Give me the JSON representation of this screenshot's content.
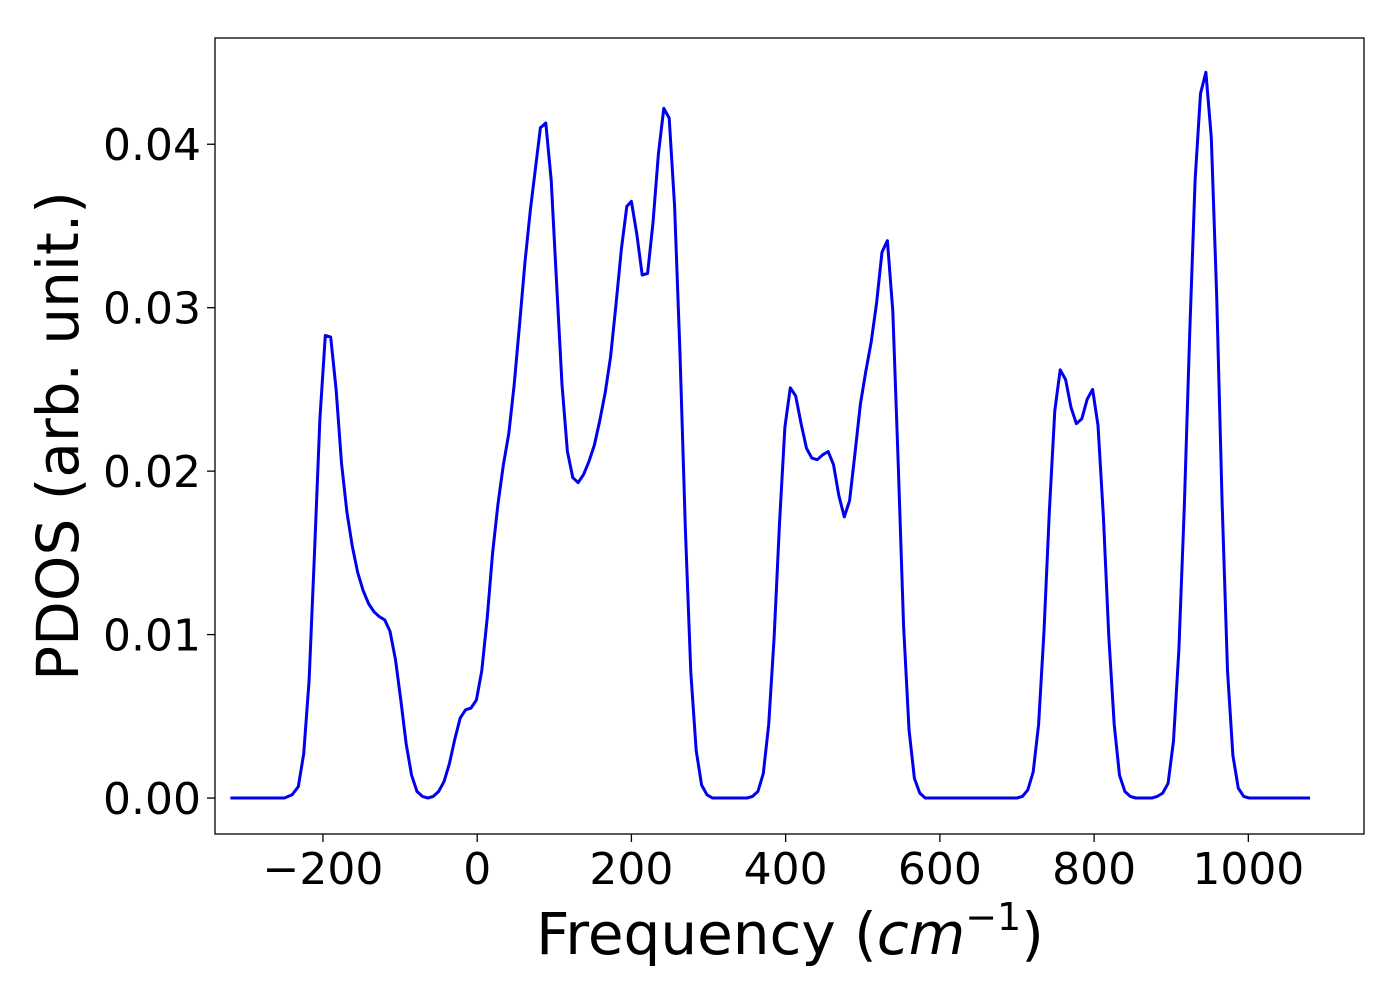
{
  "chart_data": {
    "type": "line",
    "title": "",
    "xlabel_prefix": "Frequency (",
    "xlabel_var": "cm",
    "xlabel_sup": "−1",
    "xlabel_suffix": ")",
    "ylabel": "PDOS (arb. unit.)",
    "xlim": [
      -340,
      1150
    ],
    "ylim": [
      -0.0022,
      0.0465
    ],
    "grid": false,
    "legend": "none",
    "x_ticks": [
      {
        "value": -200,
        "label": "−200"
      },
      {
        "value": 0,
        "label": "0"
      },
      {
        "value": 200,
        "label": "200"
      },
      {
        "value": 400,
        "label": "400"
      },
      {
        "value": 600,
        "label": "600"
      },
      {
        "value": 800,
        "label": "800"
      },
      {
        "value": 1000,
        "label": "1000"
      }
    ],
    "y_ticks": [
      {
        "value": 0.0,
        "label": "0.00"
      },
      {
        "value": 0.01,
        "label": "0.01"
      },
      {
        "value": 0.02,
        "label": "0.02"
      },
      {
        "value": 0.03,
        "label": "0.03"
      },
      {
        "value": 0.04,
        "label": "0.04"
      }
    ],
    "series": [
      {
        "color": "#0000ee",
        "points": [
          [
            -320,
            0.0
          ],
          [
            -250,
            0.0
          ],
          [
            -240,
            0.0002
          ],
          [
            -232,
            0.0007
          ],
          [
            -225,
            0.0027
          ],
          [
            -218,
            0.0072
          ],
          [
            -211,
            0.015
          ],
          [
            -204,
            0.0232
          ],
          [
            -197,
            0.0283
          ],
          [
            -190,
            0.0282
          ],
          [
            -183,
            0.025
          ],
          [
            -176,
            0.0205
          ],
          [
            -169,
            0.0175
          ],
          [
            -162,
            0.0154
          ],
          [
            -155,
            0.0138
          ],
          [
            -148,
            0.0127
          ],
          [
            -141,
            0.0119
          ],
          [
            -134,
            0.0114
          ],
          [
            -127,
            0.0111
          ],
          [
            -120,
            0.0109
          ],
          [
            -113,
            0.0102
          ],
          [
            -106,
            0.0085
          ],
          [
            -99,
            0.006
          ],
          [
            -92,
            0.0033
          ],
          [
            -85,
            0.0014
          ],
          [
            -78,
            0.0004
          ],
          [
            -71,
            0.0001
          ],
          [
            -64,
            0.0
          ],
          [
            -57,
            0.0001
          ],
          [
            -50,
            0.0004
          ],
          [
            -43,
            0.001
          ],
          [
            -36,
            0.0021
          ],
          [
            -29,
            0.0036
          ],
          [
            -22,
            0.0049
          ],
          [
            -15,
            0.0054
          ],
          [
            -8,
            0.0055
          ],
          [
            -1,
            0.006
          ],
          [
            6,
            0.0078
          ],
          [
            13,
            0.011
          ],
          [
            20,
            0.015
          ],
          [
            27,
            0.018
          ],
          [
            34,
            0.0204
          ],
          [
            41,
            0.0223
          ],
          [
            48,
            0.0253
          ],
          [
            55,
            0.029
          ],
          [
            62,
            0.0328
          ],
          [
            69,
            0.036
          ],
          [
            76,
            0.0387
          ],
          [
            82,
            0.041
          ],
          [
            89,
            0.0413
          ],
          [
            96,
            0.0378
          ],
          [
            103,
            0.0315
          ],
          [
            110,
            0.0253
          ],
          [
            117,
            0.0212
          ],
          [
            124,
            0.0196
          ],
          [
            131,
            0.0193
          ],
          [
            138,
            0.0198
          ],
          [
            145,
            0.0206
          ],
          [
            152,
            0.0216
          ],
          [
            159,
            0.0231
          ],
          [
            166,
            0.0248
          ],
          [
            173,
            0.027
          ],
          [
            180,
            0.0302
          ],
          [
            187,
            0.0336
          ],
          [
            194,
            0.0362
          ],
          [
            200,
            0.0365
          ],
          [
            207,
            0.0345
          ],
          [
            214,
            0.032
          ],
          [
            221,
            0.0321
          ],
          [
            228,
            0.0352
          ],
          [
            235,
            0.0394
          ],
          [
            242,
            0.0422
          ],
          [
            249,
            0.0416
          ],
          [
            256,
            0.0362
          ],
          [
            263,
            0.0272
          ],
          [
            270,
            0.0164
          ],
          [
            277,
            0.0077
          ],
          [
            284,
            0.0029
          ],
          [
            291,
            0.0008
          ],
          [
            298,
            0.0002
          ],
          [
            305,
            0.0
          ],
          [
            350,
            0.0
          ],
          [
            357,
            0.0001
          ],
          [
            364,
            0.0004
          ],
          [
            371,
            0.0015
          ],
          [
            378,
            0.0045
          ],
          [
            385,
            0.0098
          ],
          [
            392,
            0.0168
          ],
          [
            399,
            0.0227
          ],
          [
            406,
            0.0251
          ],
          [
            413,
            0.0246
          ],
          [
            420,
            0.0229
          ],
          [
            427,
            0.0214
          ],
          [
            434,
            0.0208
          ],
          [
            441,
            0.0207
          ],
          [
            448,
            0.021
          ],
          [
            455,
            0.0212
          ],
          [
            462,
            0.0204
          ],
          [
            469,
            0.0185
          ],
          [
            476,
            0.0172
          ],
          [
            483,
            0.0182
          ],
          [
            490,
            0.0211
          ],
          [
            497,
            0.0241
          ],
          [
            504,
            0.0261
          ],
          [
            511,
            0.0279
          ],
          [
            518,
            0.0303
          ],
          [
            525,
            0.0334
          ],
          [
            532,
            0.0341
          ],
          [
            539,
            0.0298
          ],
          [
            546,
            0.0205
          ],
          [
            553,
            0.0105
          ],
          [
            560,
            0.0042
          ],
          [
            567,
            0.0012
          ],
          [
            574,
            0.0003
          ],
          [
            581,
            0.0
          ],
          [
            700,
            0.0
          ],
          [
            707,
            0.0001
          ],
          [
            714,
            0.0005
          ],
          [
            721,
            0.0016
          ],
          [
            728,
            0.0045
          ],
          [
            735,
            0.0102
          ],
          [
            742,
            0.0176
          ],
          [
            749,
            0.0237
          ],
          [
            756,
            0.0262
          ],
          [
            763,
            0.0256
          ],
          [
            770,
            0.0239
          ],
          [
            777,
            0.0229
          ],
          [
            784,
            0.0232
          ],
          [
            791,
            0.0244
          ],
          [
            798,
            0.025
          ],
          [
            805,
            0.0228
          ],
          [
            812,
            0.0172
          ],
          [
            819,
            0.0099
          ],
          [
            826,
            0.0045
          ],
          [
            833,
            0.0014
          ],
          [
            840,
            0.0004
          ],
          [
            847,
            0.0001
          ],
          [
            854,
            0.0
          ],
          [
            875,
            0.0
          ],
          [
            882,
            0.0001
          ],
          [
            889,
            0.0003
          ],
          [
            896,
            0.0009
          ],
          [
            903,
            0.0035
          ],
          [
            910,
            0.0091
          ],
          [
            917,
            0.0178
          ],
          [
            924,
            0.0284
          ],
          [
            931,
            0.0378
          ],
          [
            938,
            0.0431
          ],
          [
            945,
            0.0444
          ],
          [
            952,
            0.0404
          ],
          [
            959,
            0.0307
          ],
          [
            966,
            0.0181
          ],
          [
            973,
            0.0078
          ],
          [
            980,
            0.0026
          ],
          [
            987,
            0.0006
          ],
          [
            994,
            0.0001
          ],
          [
            1001,
            0.0
          ],
          [
            1080,
            0.0
          ]
        ]
      }
    ]
  }
}
